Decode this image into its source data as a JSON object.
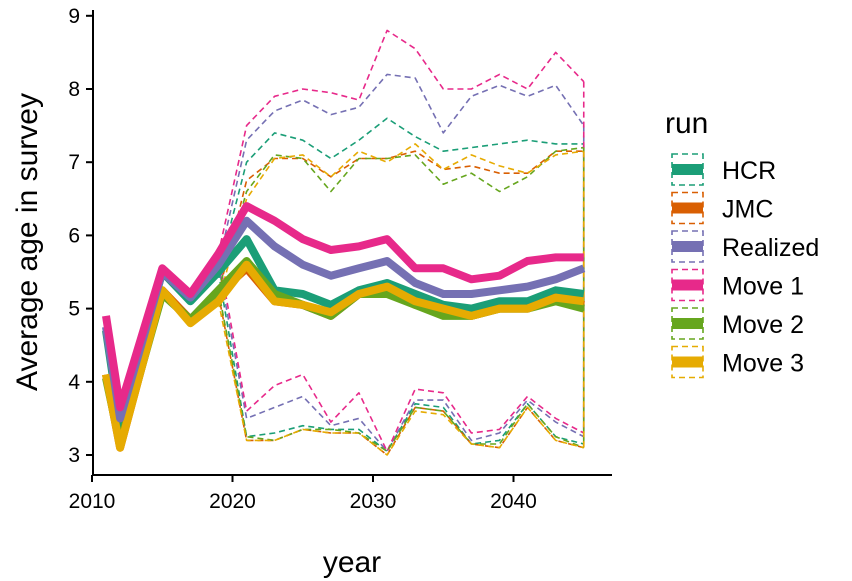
{
  "chart_data": {
    "type": "line",
    "xlabel": "year",
    "ylabel": "Average age in survey",
    "xlim": [
      2010,
      2045
    ],
    "ylim": [
      2.75,
      9.0
    ],
    "x_ticks": [
      2010,
      2020,
      2030,
      2040
    ],
    "y_ticks": [
      3,
      4,
      5,
      6,
      7,
      8,
      9
    ],
    "grid": false,
    "legend": {
      "title": "run",
      "position": "right"
    },
    "x": [
      2011,
      2012,
      2015,
      2017,
      2019,
      2021,
      2023,
      2025,
      2027,
      2029,
      2031,
      2033,
      2035,
      2037,
      2039,
      2041,
      2043,
      2045
    ],
    "series": [
      {
        "name": "HCR",
        "color": "#1b9e77",
        "values": [
          4.7,
          3.4,
          5.5,
          5.1,
          5.5,
          5.95,
          5.25,
          5.2,
          5.05,
          5.25,
          5.35,
          5.2,
          5.05,
          5.0,
          5.1,
          5.1,
          5.25,
          5.2
        ],
        "upper": [
          null,
          null,
          null,
          null,
          null,
          7.0,
          7.4,
          7.3,
          7.05,
          7.3,
          7.6,
          7.35,
          7.15,
          7.2,
          7.25,
          7.3,
          7.25,
          7.25
        ],
        "lower": [
          null,
          null,
          null,
          null,
          null,
          3.25,
          3.3,
          3.4,
          3.35,
          3.35,
          3.05,
          3.7,
          3.65,
          3.15,
          3.2,
          3.7,
          3.25,
          3.15
        ]
      },
      {
        "name": "JMC",
        "color": "#d95f02",
        "values": [
          4.1,
          3.1,
          5.25,
          4.85,
          5.2,
          5.55,
          5.1,
          5.05,
          4.9,
          5.2,
          5.25,
          5.05,
          4.95,
          4.9,
          5.0,
          5.0,
          5.15,
          5.05
        ],
        "upper": [
          null,
          null,
          null,
          null,
          null,
          6.75,
          7.05,
          7.05,
          6.8,
          7.05,
          7.05,
          7.15,
          6.9,
          6.95,
          6.85,
          6.85,
          7.15,
          7.15
        ],
        "lower": [
          null,
          null,
          null,
          null,
          null,
          3.2,
          3.2,
          3.35,
          3.3,
          3.3,
          3.0,
          3.65,
          3.6,
          3.15,
          3.1,
          3.65,
          3.2,
          3.1
        ]
      },
      {
        "name": "Realized",
        "color": "#7570b3",
        "values": [
          4.75,
          3.5,
          5.5,
          5.15,
          5.6,
          6.2,
          5.85,
          5.6,
          5.45,
          5.55,
          5.65,
          5.35,
          5.2,
          5.2,
          5.25,
          5.3,
          5.4,
          5.55
        ],
        "upper": [
          null,
          null,
          null,
          null,
          null,
          7.3,
          7.7,
          7.85,
          7.65,
          7.75,
          8.2,
          8.15,
          7.4,
          7.9,
          8.05,
          7.9,
          8.05,
          7.5
        ],
        "lower": [
          null,
          null,
          null,
          null,
          null,
          3.5,
          3.65,
          3.8,
          3.4,
          3.5,
          3.05,
          3.75,
          3.75,
          3.2,
          3.3,
          3.75,
          3.45,
          3.25
        ]
      },
      {
        "name": "Move 1",
        "color": "#e7298a",
        "values": [
          4.9,
          3.65,
          5.55,
          5.2,
          5.75,
          6.4,
          6.2,
          5.95,
          5.8,
          5.85,
          5.95,
          5.55,
          5.55,
          5.4,
          5.45,
          5.65,
          5.7,
          5.7
        ],
        "upper": [
          null,
          null,
          null,
          null,
          null,
          7.5,
          7.9,
          8.0,
          7.95,
          7.85,
          8.8,
          8.55,
          8.0,
          8.0,
          8.2,
          8.0,
          8.5,
          8.1
        ],
        "lower": [
          null,
          null,
          null,
          null,
          null,
          3.6,
          3.95,
          4.1,
          3.45,
          3.85,
          3.05,
          3.9,
          3.85,
          3.3,
          3.35,
          3.8,
          3.5,
          3.3
        ]
      },
      {
        "name": "Move 2",
        "color": "#66a61e",
        "values": [
          4.05,
          3.15,
          5.2,
          4.85,
          5.25,
          5.65,
          5.2,
          5.05,
          4.9,
          5.2,
          5.2,
          5.05,
          4.9,
          4.9,
          5.0,
          5.0,
          5.1,
          5.0
        ],
        "upper": [
          null,
          null,
          null,
          null,
          null,
          6.6,
          7.1,
          7.05,
          6.6,
          7.05,
          7.05,
          7.1,
          6.7,
          6.85,
          6.6,
          6.8,
          7.15,
          7.2
        ],
        "lower": [
          null,
          null,
          null,
          null,
          null,
          3.25,
          3.2,
          3.35,
          3.35,
          3.3,
          3.05,
          3.65,
          3.6,
          3.15,
          3.15,
          3.7,
          3.25,
          3.1
        ]
      },
      {
        "name": "Move 3",
        "color": "#e6ab02",
        "values": [
          4.1,
          3.1,
          5.25,
          4.8,
          5.1,
          5.6,
          5.1,
          5.05,
          4.95,
          5.2,
          5.3,
          5.1,
          5.0,
          4.9,
          5.0,
          5.0,
          5.15,
          5.1
        ],
        "upper": [
          null,
          null,
          null,
          null,
          null,
          6.5,
          7.05,
          7.1,
          6.8,
          7.15,
          7.0,
          7.25,
          6.9,
          7.1,
          6.95,
          6.85,
          7.1,
          7.15
        ],
        "lower": [
          null,
          null,
          null,
          null,
          null,
          3.2,
          3.2,
          3.35,
          3.3,
          3.3,
          3.0,
          3.6,
          3.55,
          3.15,
          3.1,
          3.65,
          3.2,
          3.1
        ]
      }
    ]
  }
}
